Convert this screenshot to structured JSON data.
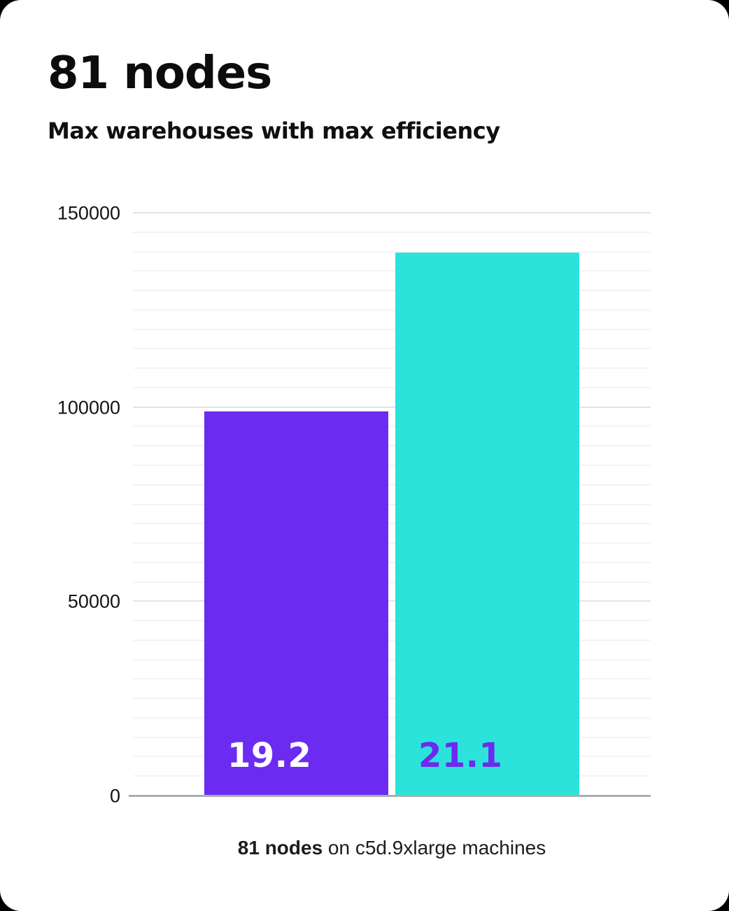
{
  "header": {
    "title": "81 nodes",
    "subtitle": "Max warehouses with max efficiency"
  },
  "caption": {
    "bold": "81 nodes",
    "rest": " on c5d.9xlarge machines"
  },
  "chart_data": {
    "type": "bar",
    "title": "81 nodes",
    "subtitle": "Max warehouses with max efficiency",
    "caption": "81 nodes on c5d.9xlarge machines",
    "series": [
      {
        "name": "left-bar",
        "label": "19.2",
        "value": 99000,
        "color": "#6c2bf0",
        "label_color": "#ffffff"
      },
      {
        "name": "right-bar",
        "label": "21.1",
        "value": 140000,
        "color": "#2be3da",
        "label_color": "#6c2bf0"
      }
    ],
    "ylim": [
      0,
      150000
    ],
    "yticks": [
      0,
      50000,
      100000,
      150000
    ],
    "minor_grid_step": 5000,
    "major_grid_step": 50000,
    "grid": true,
    "legend": "none",
    "xlabel": "",
    "ylabel": ""
  }
}
